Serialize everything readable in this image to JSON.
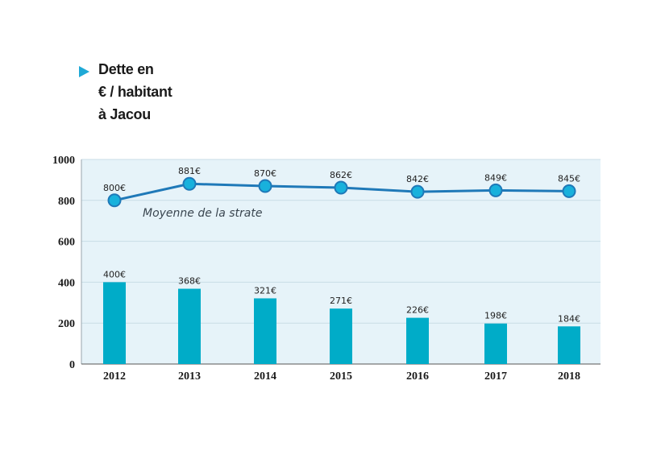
{
  "title_lines": [
    "Dette en",
    "€ / habitant",
    "à Jacou"
  ],
  "colors": {
    "bar": "#00acc8",
    "line": "#1f79b8",
    "marker": "#18b1dc",
    "plot_bg": "#e6f3f9",
    "arrow": "#1fa9d6"
  },
  "chart_data": {
    "type": "bar",
    "categories": [
      "2012",
      "2013",
      "2014",
      "2015",
      "2016",
      "2017",
      "2018"
    ],
    "ylim": [
      0,
      1000
    ],
    "yticks": [
      0,
      200,
      400,
      600,
      800,
      1000
    ],
    "grid": true,
    "series": [
      {
        "type": "bar",
        "values": [
          400,
          368,
          321,
          271,
          226,
          198,
          184
        ],
        "data_labels": [
          "400€",
          "368€",
          "321€",
          "271€",
          "226€",
          "198€",
          "184€"
        ]
      },
      {
        "type": "line",
        "name": "Moyenne de la strate",
        "values": [
          800,
          881,
          870,
          862,
          842,
          849,
          845
        ],
        "data_labels": [
          "800€",
          "881€",
          "870€",
          "862€",
          "842€",
          "849€",
          "845€"
        ]
      }
    ]
  }
}
